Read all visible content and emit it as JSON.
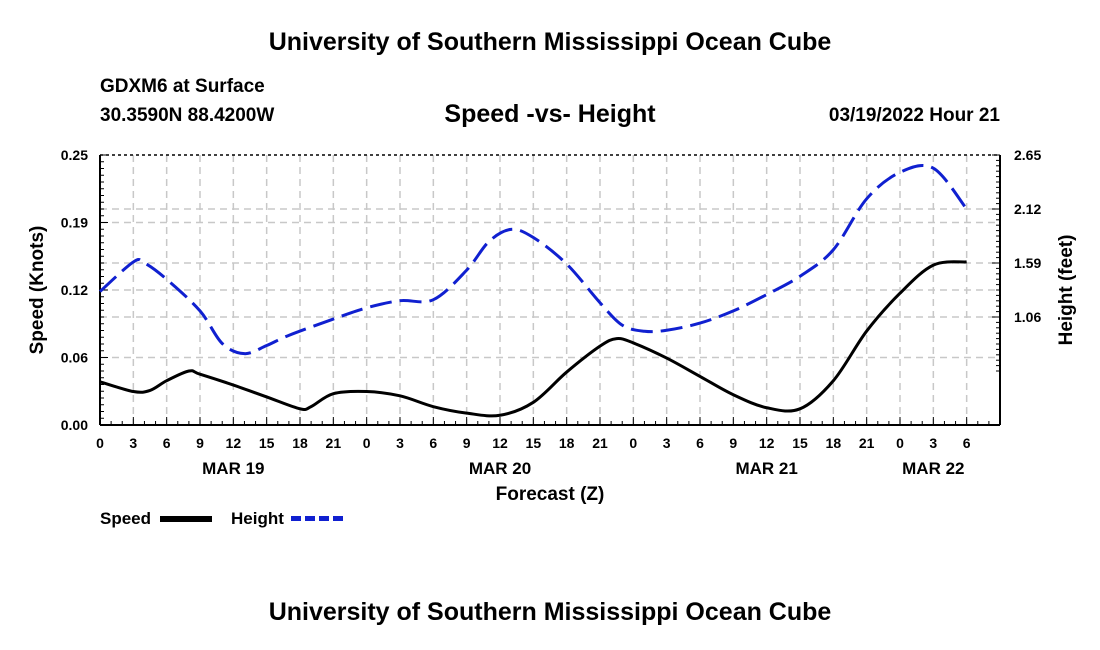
{
  "header": {
    "title": "University of Southern Mississippi Ocean Cube",
    "station": "GDXM6 at Surface",
    "coords": "30.3590N  88.4200W",
    "subtitle": "Speed -vs- Height",
    "datetime": "03/19/2022 Hour 21"
  },
  "footer": {
    "title": "University of Southern Mississippi Ocean Cube"
  },
  "legend": {
    "speed_label": "Speed",
    "height_label": "Height"
  },
  "colors": {
    "speed": "#000000",
    "height": "#1020d0",
    "grid": "#c8c8c8"
  },
  "chart_data": {
    "type": "line",
    "title": "Speed -vs- Height",
    "xlabel": "Forecast (Z)",
    "ylabel": "Speed (Knots)",
    "y2label": "Height (feet)",
    "x_range_hours": [
      0,
      81
    ],
    "x_ticks": [
      {
        "h": 0,
        "label": "0"
      },
      {
        "h": 3,
        "label": "3"
      },
      {
        "h": 6,
        "label": "6"
      },
      {
        "h": 9,
        "label": "9"
      },
      {
        "h": 12,
        "label": "12"
      },
      {
        "h": 15,
        "label": "15"
      },
      {
        "h": 18,
        "label": "18"
      },
      {
        "h": 21,
        "label": "21"
      },
      {
        "h": 24,
        "label": "0"
      },
      {
        "h": 27,
        "label": "3"
      },
      {
        "h": 30,
        "label": "6"
      },
      {
        "h": 33,
        "label": "9"
      },
      {
        "h": 36,
        "label": "12"
      },
      {
        "h": 39,
        "label": "15"
      },
      {
        "h": 42,
        "label": "18"
      },
      {
        "h": 45,
        "label": "21"
      },
      {
        "h": 48,
        "label": "0"
      },
      {
        "h": 51,
        "label": "3"
      },
      {
        "h": 54,
        "label": "6"
      },
      {
        "h": 57,
        "label": "9"
      },
      {
        "h": 60,
        "label": "12"
      },
      {
        "h": 63,
        "label": "15"
      },
      {
        "h": 66,
        "label": "18"
      },
      {
        "h": 69,
        "label": "21"
      },
      {
        "h": 72,
        "label": "0"
      },
      {
        "h": 75,
        "label": "3"
      },
      {
        "h": 78,
        "label": "6"
      }
    ],
    "day_labels": [
      {
        "h": 12,
        "label": "MAR 19"
      },
      {
        "h": 36,
        "label": "MAR 20"
      },
      {
        "h": 60,
        "label": "MAR 21"
      },
      {
        "h": 75,
        "label": "MAR 22"
      }
    ],
    "y_range": [
      0,
      0.25
    ],
    "y_ticks": [
      "0.00",
      "0.06",
      "0.12",
      "0.19",
      "0.25"
    ],
    "y_tick_values": [
      0,
      0.0625,
      0.125,
      0.1875,
      0.25
    ],
    "y2_range": [
      0.0,
      2.65
    ],
    "y2_ticks": [
      "1.06",
      "1.59",
      "2.12",
      "2.65"
    ],
    "y2_tick_values": [
      1.06,
      1.59,
      2.12,
      2.65
    ],
    "series": [
      {
        "name": "Speed",
        "axis": "left",
        "style": "solid",
        "points": [
          [
            0,
            0.04
          ],
          [
            3,
            0.031
          ],
          [
            4.5,
            0.032
          ],
          [
            6,
            0.041
          ],
          [
            8,
            0.05
          ],
          [
            9,
            0.047
          ],
          [
            12,
            0.037
          ],
          [
            15,
            0.026
          ],
          [
            18,
            0.015
          ],
          [
            19,
            0.017
          ],
          [
            21,
            0.029
          ],
          [
            24,
            0.031
          ],
          [
            27,
            0.027
          ],
          [
            30,
            0.017
          ],
          [
            33,
            0.011
          ],
          [
            36,
            0.009
          ],
          [
            39,
            0.021
          ],
          [
            42,
            0.049
          ],
          [
            45,
            0.073
          ],
          [
            46.5,
            0.08
          ],
          [
            48,
            0.076
          ],
          [
            51,
            0.062
          ],
          [
            54,
            0.045
          ],
          [
            57,
            0.028
          ],
          [
            60,
            0.016
          ],
          [
            63,
            0.015
          ],
          [
            66,
            0.041
          ],
          [
            69,
            0.087
          ],
          [
            72,
            0.122
          ],
          [
            75,
            0.148
          ],
          [
            78,
            0.151
          ]
        ]
      },
      {
        "name": "Height",
        "axis": "right",
        "style": "dashed",
        "points": [
          [
            0,
            1.31
          ],
          [
            3,
            1.6
          ],
          [
            4,
            1.59
          ],
          [
            6,
            1.43
          ],
          [
            9,
            1.12
          ],
          [
            11,
            0.8
          ],
          [
            13,
            0.7
          ],
          [
            15,
            0.78
          ],
          [
            17,
            0.88
          ],
          [
            21,
            1.04
          ],
          [
            24,
            1.15
          ],
          [
            27,
            1.22
          ],
          [
            30,
            1.23
          ],
          [
            33,
            1.52
          ],
          [
            35,
            1.8
          ],
          [
            37,
            1.92
          ],
          [
            39,
            1.84
          ],
          [
            42,
            1.58
          ],
          [
            45,
            1.2
          ],
          [
            47,
            0.98
          ],
          [
            49,
            0.92
          ],
          [
            51,
            0.93
          ],
          [
            54,
            1.0
          ],
          [
            57,
            1.12
          ],
          [
            60,
            1.28
          ],
          [
            63,
            1.46
          ],
          [
            66,
            1.72
          ],
          [
            69,
            2.22
          ],
          [
            72,
            2.48
          ],
          [
            75,
            2.52
          ],
          [
            78,
            2.12
          ]
        ]
      }
    ]
  }
}
